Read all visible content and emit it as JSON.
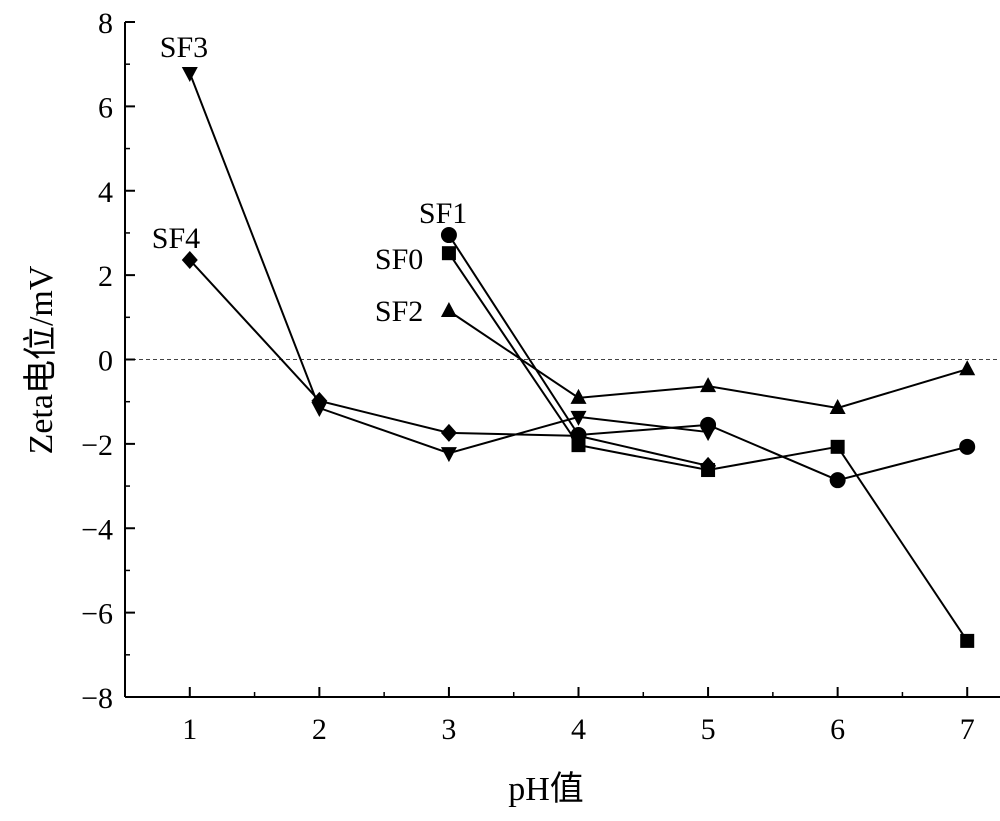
{
  "chart_data": {
    "type": "line",
    "xlabel": "pH值",
    "ylabel": "Zeta电位/mV",
    "xlim": [
      0.5,
      7.5
    ],
    "ylim": [
      -8,
      8
    ],
    "x_ticks": [
      1,
      2,
      3,
      4,
      5,
      6,
      7
    ],
    "y_ticks": [
      -8,
      -6,
      -4,
      -2,
      0,
      2,
      4,
      6,
      8
    ],
    "y_tick_labels": [
      "−8",
      "−6",
      "−4",
      "−2",
      "0",
      "2",
      "4",
      "6",
      "8"
    ],
    "grid": false,
    "reference_line": {
      "y": 0,
      "style": "dashed"
    },
    "series": [
      {
        "name": "SF0",
        "marker": "square",
        "x": [
          3,
          4,
          5,
          6,
          7
        ],
        "y": [
          2.52,
          -2.03,
          -2.62,
          -2.07,
          -6.67
        ]
      },
      {
        "name": "SF1",
        "marker": "circle",
        "x": [
          3,
          4,
          5,
          6,
          7
        ],
        "y": [
          2.95,
          -1.79,
          -1.55,
          -2.86,
          -2.07
        ]
      },
      {
        "name": "SF2",
        "marker": "triangle-up",
        "x": [
          3,
          4,
          5,
          6,
          7
        ],
        "y": [
          1.15,
          -0.91,
          -0.63,
          -1.15,
          -0.23
        ]
      },
      {
        "name": "SF3",
        "marker": "triangle-down",
        "x": [
          1,
          2,
          3,
          4,
          5
        ],
        "y": [
          6.79,
          -1.15,
          -2.22,
          -1.36,
          -1.72
        ]
      },
      {
        "name": "SF4",
        "marker": "diamond",
        "x": [
          1,
          2,
          3,
          4,
          5
        ],
        "y": [
          2.36,
          -0.98,
          -1.74,
          -1.81,
          -2.52
        ]
      }
    ]
  }
}
